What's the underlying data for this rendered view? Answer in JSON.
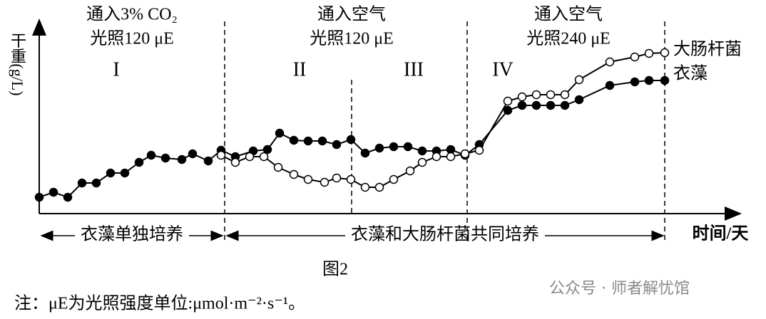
{
  "chart_data": {
    "type": "line",
    "y_label": "干重(g/L)",
    "x_label": "时间/天",
    "caption": "图2",
    "note": "注：μE为光照强度单位:μmol·m⁻²·s⁻¹。",
    "watermark": "公众号 · 师者解忧馆",
    "xlim": [
      0,
      985
    ],
    "ylim": [
      0,
      270
    ],
    "phases": [
      {
        "lines": [
          "通入3% CO₂",
          "光照120 μE"
        ],
        "x": 130
      },
      {
        "lines": [
          "通入空气",
          "光照120 μE"
        ],
        "x": 438
      },
      {
        "lines": [
          "通入空气",
          "光照240 μE"
        ],
        "x": 742
      }
    ],
    "stages": [
      {
        "label": "I",
        "x": 108
      },
      {
        "label": "II",
        "x": 365
      },
      {
        "label": "III",
        "x": 525
      },
      {
        "label": "IV",
        "x": 650
      }
    ],
    "dividers": [
      {
        "x": 260,
        "top": 270
      },
      {
        "x": 438,
        "top": 188
      },
      {
        "x": 600,
        "top": 270
      },
      {
        "x": 877,
        "top": 270
      }
    ],
    "spans": [
      {
        "label": "衣藻单独培养",
        "from": 3,
        "to": 257
      },
      {
        "label": "衣藻和大肠杆菌共同培养",
        "from": 263,
        "to": 875
      }
    ],
    "series": [
      {
        "name": "衣藻",
        "color": "#000",
        "marker": "filled",
        "x": [
          0,
          20,
          40,
          60,
          80,
          100,
          120,
          140,
          157,
          177,
          200,
          215,
          237,
          255,
          275,
          300,
          320,
          337,
          357,
          377,
          397,
          417,
          437,
          457,
          477,
          497,
          517,
          537,
          557,
          577,
          597,
          617,
          657,
          677,
          697,
          717,
          737,
          757,
          800,
          835,
          855,
          877
        ],
        "values": [
          23,
          30,
          23,
          43,
          43,
          57,
          57,
          72,
          82,
          78,
          76,
          84,
          74,
          89,
          80,
          88,
          90,
          113,
          103,
          102,
          102,
          97,
          104,
          85,
          92,
          94,
          94,
          88,
          88,
          90,
          82,
          97,
          145,
          152,
          152,
          152,
          152,
          160,
          180,
          185,
          187,
          187
        ]
      },
      {
        "name": "大肠杆菌",
        "color": "#000",
        "marker": "open",
        "x": [
          255,
          275,
          295,
          315,
          335,
          357,
          377,
          400,
          417,
          437,
          457,
          477,
          497,
          520,
          537,
          557,
          577,
          597,
          617,
          657,
          677,
          697,
          717,
          737,
          757,
          800,
          835,
          855,
          877
        ],
        "values": [
          82,
          72,
          80,
          80,
          65,
          55,
          48,
          44,
          50,
          48,
          37,
          37,
          48,
          60,
          72,
          80,
          80,
          84,
          89,
          158,
          164,
          167,
          167,
          167,
          188,
          213,
          220,
          225,
          226
        ]
      }
    ]
  }
}
